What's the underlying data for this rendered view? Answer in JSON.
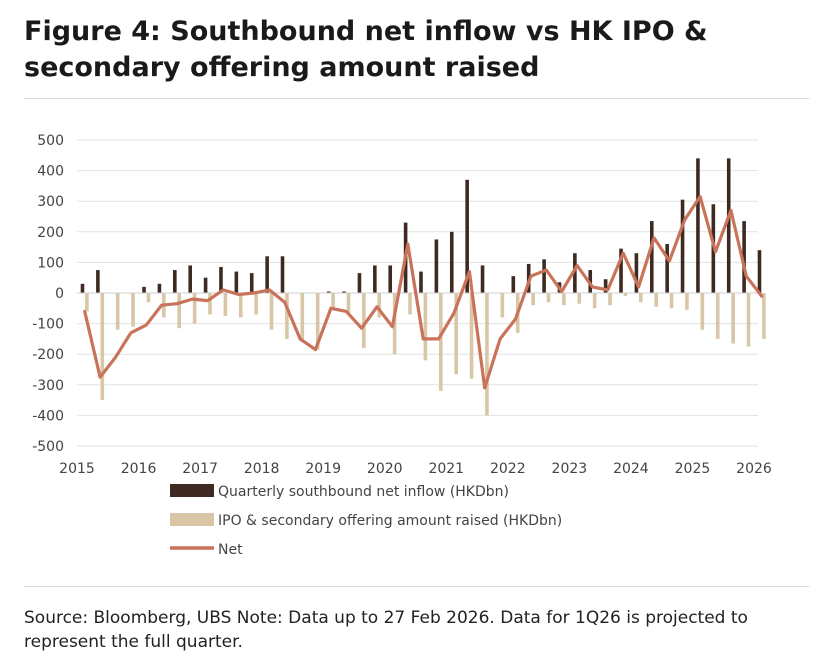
{
  "title": "Figure 4: Southbound net inflow vs HK IPO & secondary offering amount raised",
  "source": "Source: Bloomberg, UBS Note: Data up to 27 Feb 2026. Data for 1Q26 is projected to represent the full quarter.",
  "colors": {
    "inflow": "#3e2a22",
    "ipo": "#d8c6a6",
    "net": "#c8735a",
    "grid": "#e2e2e2"
  },
  "chart_data": {
    "type": "bar",
    "title": "Figure 4: Southbound net inflow vs HK IPO & secondary offering amount raised",
    "xlabel": "",
    "ylabel": "",
    "ylim": [
      -500,
      500
    ],
    "yticks": [
      500,
      400,
      300,
      200,
      100,
      0,
      -100,
      -200,
      -300,
      -400,
      -500
    ],
    "year_labels": [
      "2015",
      "2016",
      "2017",
      "2018",
      "2019",
      "2020",
      "2021",
      "2022",
      "2023",
      "2024",
      "2025",
      "2026"
    ],
    "categories": [
      "1Q15",
      "2Q15",
      "3Q15",
      "4Q15",
      "1Q16",
      "2Q16",
      "3Q16",
      "4Q16",
      "1Q17",
      "2Q17",
      "3Q17",
      "4Q17",
      "1Q18",
      "2Q18",
      "3Q18",
      "4Q18",
      "1Q19",
      "2Q19",
      "3Q19",
      "4Q19",
      "1Q20",
      "2Q20",
      "3Q20",
      "4Q20",
      "1Q21",
      "2Q21",
      "3Q21",
      "4Q21",
      "1Q22",
      "2Q22",
      "3Q22",
      "4Q22",
      "1Q23",
      "2Q23",
      "3Q23",
      "4Q23",
      "1Q24",
      "2Q24",
      "3Q24",
      "4Q24",
      "1Q25",
      "2Q25",
      "3Q25",
      "4Q25",
      "1Q26"
    ],
    "legend": [
      "Quarterly southbound net inflow (HKDbn)",
      "IPO & secondary offering amount raised (HKDbn)",
      "Net"
    ],
    "series": [
      {
        "name": "Quarterly southbound net inflow (HKDbn)",
        "type": "bar",
        "values": [
          30,
          75,
          0,
          0,
          20,
          30,
          75,
          90,
          50,
          85,
          70,
          65,
          120,
          120,
          0,
          0,
          5,
          5,
          65,
          90,
          90,
          230,
          70,
          175,
          200,
          370,
          90,
          0,
          55,
          95,
          110,
          35,
          130,
          75,
          45,
          145,
          130,
          235,
          160,
          305,
          440,
          290,
          440,
          235,
          140
        ]
      },
      {
        "name": "IPO & secondary offering amount raised (HKDbn)",
        "type": "bar",
        "values": [
          -60,
          -350,
          -120,
          -110,
          -30,
          -80,
          -115,
          -100,
          -70,
          -75,
          -80,
          -70,
          -120,
          -150,
          -160,
          -185,
          -55,
          -65,
          -180,
          -80,
          -200,
          -70,
          -220,
          -320,
          -265,
          -280,
          -400,
          -80,
          -130,
          -40,
          -30,
          -40,
          -35,
          -50,
          -40,
          -10,
          -30,
          -45,
          -50,
          -55,
          -120,
          -150,
          -165,
          -175,
          -150
        ]
      },
      {
        "name": "Net",
        "type": "line",
        "values": [
          -60,
          -275,
          -210,
          -130,
          -105,
          -40,
          -35,
          -20,
          -25,
          10,
          -5,
          0,
          10,
          -30,
          -150,
          -185,
          -50,
          -60,
          -115,
          -45,
          -110,
          160,
          -150,
          -150,
          -65,
          70,
          -310,
          -150,
          -85,
          55,
          75,
          5,
          90,
          20,
          10,
          130,
          20,
          180,
          105,
          240,
          315,
          135,
          270,
          55,
          -10
        ]
      }
    ]
  }
}
